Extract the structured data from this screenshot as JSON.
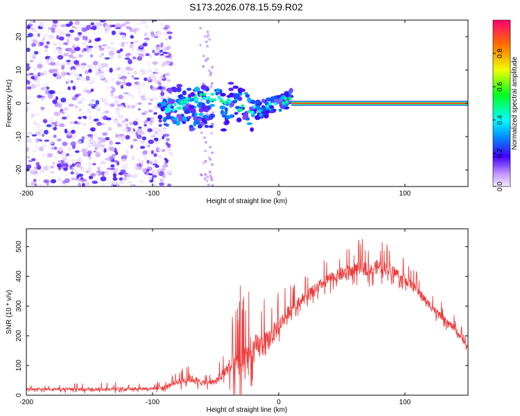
{
  "figure_title": "S173.2026.078.15.59.R02",
  "chart_data": [
    {
      "type": "heatmap",
      "title": "S173.2026.078.15.59.R02",
      "xlabel": "Height of straight line (km)",
      "ylabel": "Frequency (Hz)",
      "xlim": [
        -200,
        150
      ],
      "ylim": [
        -25,
        25
      ],
      "xticks": [
        -200,
        -100,
        0,
        100
      ],
      "yticks": [
        -20,
        -10,
        0,
        10,
        20
      ],
      "colorbar": {
        "label": "Normalized spectral amplitude",
        "range": [
          0,
          1
        ],
        "ticks": [
          0.0,
          0.2,
          0.4,
          0.6,
          0.8
        ]
      },
      "features": [
        {
          "name": "noise region",
          "x_range": [
            -200,
            -100
          ],
          "frequency_range": [
            -25,
            25
          ],
          "amplitude": "low (0.0-0.2)"
        },
        {
          "name": "emerging tone",
          "x_range": [
            -95,
            10
          ],
          "frequency_range": [
            -10,
            8
          ],
          "amplitude": "0.2-0.5"
        },
        {
          "name": "steady tone",
          "x_range": [
            10,
            150
          ],
          "frequency_hz": 0,
          "amplitude": "0.8-1.0"
        }
      ]
    },
    {
      "type": "line",
      "title": "",
      "xlabel": "Height of straight line (km)",
      "ylabel": "SNR (10 * v/v)",
      "xlim": [
        -200,
        150
      ],
      "ylim": [
        0,
        560
      ],
      "xticks": [
        -200,
        -100,
        0,
        100
      ],
      "yticks": [
        0,
        100,
        200,
        300,
        400,
        500
      ],
      "color": "#ef3b3b",
      "envelope": {
        "x": [
          -200,
          -150,
          -100,
          -90,
          -80,
          -70,
          -60,
          -50,
          -40,
          -30,
          -20,
          -10,
          0,
          10,
          20,
          30,
          40,
          50,
          60,
          70,
          80,
          90,
          100,
          110,
          120,
          130,
          140,
          150
        ],
        "mean": [
          20,
          20,
          22,
          28,
          45,
          55,
          40,
          45,
          90,
          110,
          150,
          170,
          230,
          290,
          330,
          360,
          390,
          405,
          420,
          425,
          430,
          420,
          390,
          350,
          300,
          260,
          220,
          160
        ],
        "peak": [
          35,
          45,
          45,
          60,
          90,
          120,
          80,
          90,
          200,
          400,
          360,
          340,
          360,
          380,
          400,
          440,
          470,
          510,
          520,
          530,
          540,
          500,
          470,
          420,
          360,
          310,
          270,
          200
        ]
      }
    }
  ]
}
